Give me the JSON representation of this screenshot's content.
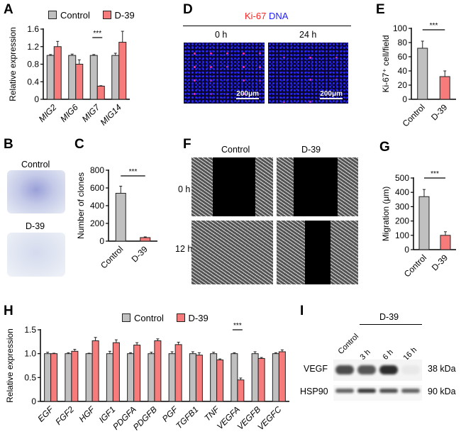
{
  "panel_labels": {
    "A": "A",
    "B": "B",
    "C": "C",
    "D": "D",
    "E": "E",
    "F": "F",
    "G": "G",
    "H": "H",
    "I": "I"
  },
  "legend": {
    "control": "Control",
    "d39": "D-39"
  },
  "colors": {
    "control": "#c0c0c0",
    "d39": "#f77b7b"
  },
  "chart_data": [
    {
      "id": "A",
      "type": "bar",
      "ylabel": "Relative expression",
      "ylim": [
        0,
        1.6
      ],
      "yticks": [
        "0",
        "0.4",
        "0.8",
        "1.2",
        "1.6"
      ],
      "ytick_values": [
        0,
        0.4,
        0.8,
        1.2,
        1.6
      ],
      "italic_categories": true,
      "categories": [
        "MIG2",
        "MIG6",
        "MIG7",
        "MIG14"
      ],
      "series": [
        {
          "name": "Control",
          "values": [
            1.0,
            1.0,
            1.0,
            1.0
          ],
          "errors": [
            0.02,
            0.03,
            0.02,
            0.05
          ]
        },
        {
          "name": "D-39",
          "values": [
            1.2,
            0.8,
            0.3,
            1.3
          ],
          "errors": [
            0.12,
            0.1,
            0.01,
            0.25
          ]
        }
      ],
      "annotations": [
        {
          "category": "MIG7",
          "text": "***"
        }
      ]
    },
    {
      "id": "C",
      "type": "bar",
      "ylabel": "Number of clones",
      "ylim": [
        0,
        800
      ],
      "yticks": [
        "0",
        "200",
        "400",
        "600",
        "800"
      ],
      "ytick_values": [
        0,
        200,
        400,
        600,
        800
      ],
      "categories": [
        "Control",
        "D-39"
      ],
      "series": [
        {
          "name": "clones",
          "values": [
            540,
            40
          ],
          "errors": [
            80,
            8
          ]
        }
      ],
      "annotations": [
        {
          "span": [
            "Control",
            "D-39"
          ],
          "text": "***"
        }
      ]
    },
    {
      "id": "E",
      "type": "bar",
      "ylabel": "Ki-67⁺ cell/field",
      "ylim": [
        0,
        100
      ],
      "yticks": [
        "0",
        "20",
        "40",
        "60",
        "80",
        "100"
      ],
      "ytick_values": [
        0,
        20,
        40,
        60,
        80,
        100
      ],
      "categories": [
        "Control",
        "D-39"
      ],
      "series": [
        {
          "name": "Ki-67+",
          "values": [
            72,
            32
          ],
          "errors": [
            10,
            8
          ]
        }
      ],
      "annotations": [
        {
          "span": [
            "Control",
            "D-39"
          ],
          "text": "***"
        }
      ]
    },
    {
      "id": "G",
      "type": "bar",
      "ylabel": "Migration (μm)",
      "ylim": [
        0,
        500
      ],
      "yticks": [
        "0",
        "100",
        "200",
        "300",
        "400",
        "500"
      ],
      "ytick_values": [
        0,
        100,
        200,
        300,
        400,
        500
      ],
      "categories": [
        "Control",
        "D-39"
      ],
      "series": [
        {
          "name": "Migration",
          "values": [
            370,
            100
          ],
          "errors": [
            50,
            25
          ]
        }
      ],
      "annotations": [
        {
          "span": [
            "Control",
            "D-39"
          ],
          "text": "***"
        }
      ]
    },
    {
      "id": "H",
      "type": "bar",
      "ylabel": "Relative expression",
      "ylim": [
        0,
        1.5
      ],
      "yticks": [
        "0",
        "0.5",
        "1.0",
        "1.5"
      ],
      "ytick_values": [
        0,
        0.5,
        1.0,
        1.5
      ],
      "italic_categories": true,
      "categories": [
        "EGF",
        "FGF2",
        "HGF",
        "IGF1",
        "PDGFA",
        "PDGFB",
        "PGF",
        "TGFB1",
        "TNF",
        "VEGFA",
        "VEGFB",
        "VEGFC"
      ],
      "series": [
        {
          "name": "Control",
          "values": [
            1.0,
            1.0,
            1.0,
            1.0,
            1.0,
            1.0,
            1.0,
            1.0,
            1.0,
            1.0,
            1.0,
            1.0
          ],
          "errors": [
            0.03,
            0.02,
            0.01,
            0.05,
            0.02,
            0.03,
            0.04,
            0.04,
            0.03,
            0.02,
            0.04,
            0.02
          ]
        },
        {
          "name": "D-39",
          "values": [
            1.0,
            1.05,
            1.27,
            1.23,
            1.18,
            1.27,
            1.19,
            0.97,
            0.87,
            0.45,
            0.9,
            1.04
          ],
          "errors": [
            0.01,
            0.04,
            0.07,
            0.06,
            0.05,
            0.04,
            0.05,
            0.05,
            0.02,
            0.04,
            0.02,
            0.04
          ]
        }
      ],
      "annotations": [
        {
          "category": "VEGFA",
          "text": "***"
        }
      ]
    }
  ],
  "panel_B": {
    "titles": [
      "Control",
      "D-39"
    ]
  },
  "panel_D": {
    "stain_ki67": "Ki-67",
    "stain_dna": "DNA",
    "times": [
      "0 h",
      "24 h"
    ],
    "scale": "200μm"
  },
  "panel_F": {
    "columns": [
      "Control",
      "D-39"
    ],
    "rows": [
      "0 h",
      "12 h"
    ]
  },
  "panel_I": {
    "group": "D-39",
    "lanes": [
      "Control",
      "3 h",
      "6 h",
      "16 h"
    ],
    "rows": [
      {
        "name": "VEGF",
        "size": "38 kDa",
        "intensity": [
          0.8,
          0.75,
          0.95,
          0.05
        ]
      },
      {
        "name": "HSP90",
        "size": "90 kDa",
        "intensity": [
          0.7,
          0.9,
          0.8,
          0.7
        ]
      }
    ]
  }
}
